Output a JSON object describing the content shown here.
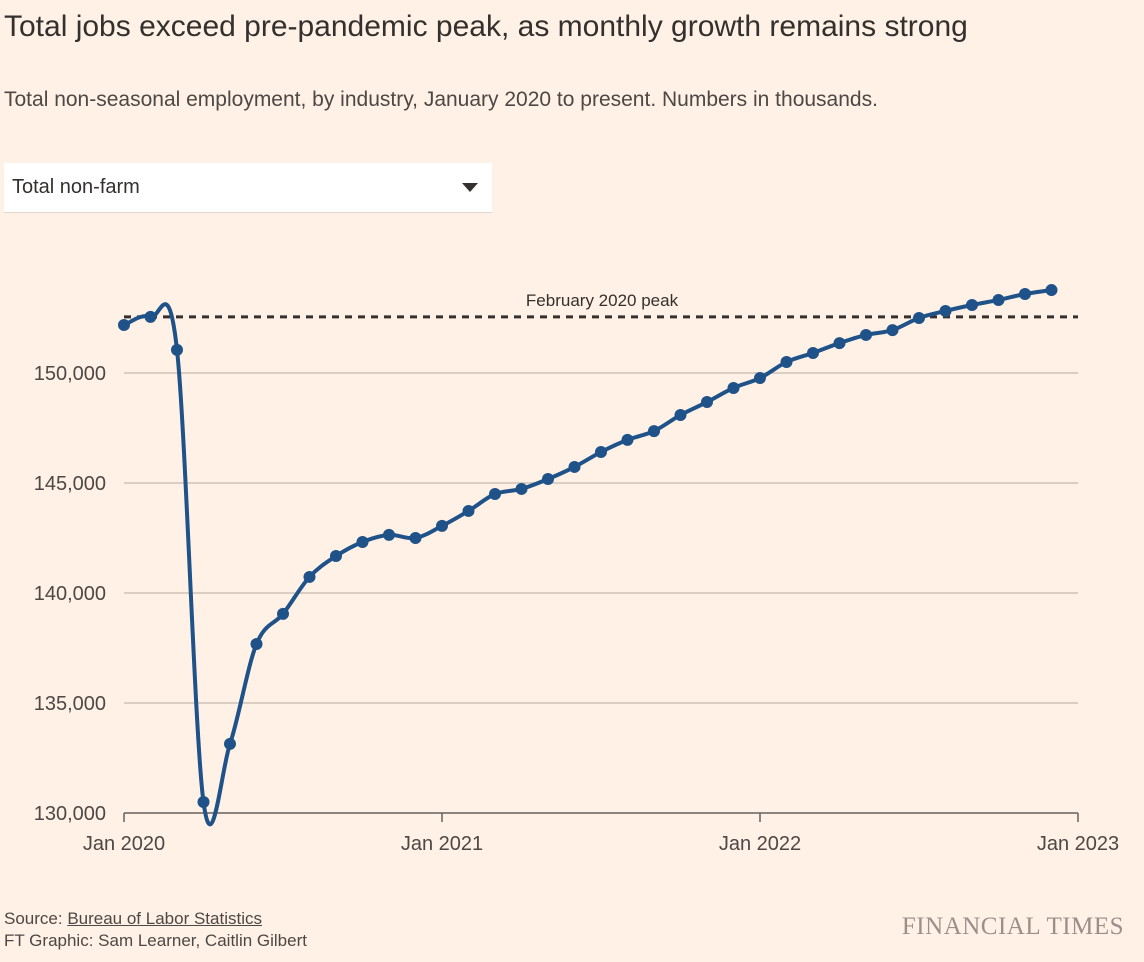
{
  "title": "Total jobs exceed pre-pandemic peak, as monthly growth remains strong",
  "subtitle": "Total non-seasonal employment, by industry, January 2020 to present. Numbers in thousands.",
  "dropdown": {
    "selected": "Total non-farm"
  },
  "footer": {
    "source_label": "Source: ",
    "source_link": "Bureau of Labor Statistics",
    "credit": "FT Graphic: Sam Learner, Caitlin Gilbert",
    "logo": "FINANCIAL TIMES"
  },
  "colors": {
    "line": "#1e5288",
    "grid": "#cdc2b8",
    "background": "#fff1e5",
    "peak": "#33302e"
  },
  "chart_data": {
    "type": "line",
    "title": "Total jobs exceed pre-pandemic peak, as monthly growth remains strong",
    "xlabel": "",
    "ylabel": "",
    "ylim": [
      130000,
      155000
    ],
    "xlim": [
      "2020-01",
      "2023-01"
    ],
    "yticks": [
      130000,
      135000,
      140000,
      145000,
      150000
    ],
    "ytick_labels": [
      "130,000",
      "135,000",
      "140,000",
      "145,000",
      "150,000"
    ],
    "xtick_labels": [
      "Jan 2020",
      "Jan 2021",
      "Jan 2022",
      "Jan 2023"
    ],
    "grid": true,
    "annotation": {
      "label": "February 2020 peak",
      "value": 152550
    },
    "series": [
      {
        "name": "Total non-farm",
        "x": [
          "2020-01",
          "2020-02",
          "2020-03",
          "2020-04",
          "2020-05",
          "2020-06",
          "2020-07",
          "2020-08",
          "2020-09",
          "2020-10",
          "2020-11",
          "2020-12",
          "2021-01",
          "2021-02",
          "2021-03",
          "2021-04",
          "2021-05",
          "2021-06",
          "2021-07",
          "2021-08",
          "2021-09",
          "2021-10",
          "2021-11",
          "2021-12",
          "2022-01",
          "2022-02",
          "2022-03",
          "2022-04",
          "2022-05",
          "2022-06",
          "2022-07",
          "2022-08",
          "2022-09",
          "2022-10",
          "2022-11",
          "2022-12"
        ],
        "values": [
          152180,
          152550,
          151050,
          130500,
          133140,
          137680,
          139050,
          140730,
          141680,
          142320,
          142640,
          142500,
          143050,
          143730,
          144500,
          144730,
          145180,
          145730,
          146410,
          146960,
          147360,
          148090,
          148680,
          149320,
          149770,
          150500,
          150910,
          151360,
          151730,
          151950,
          152500,
          152820,
          153090,
          153320,
          153590,
          153770
        ]
      }
    ]
  }
}
